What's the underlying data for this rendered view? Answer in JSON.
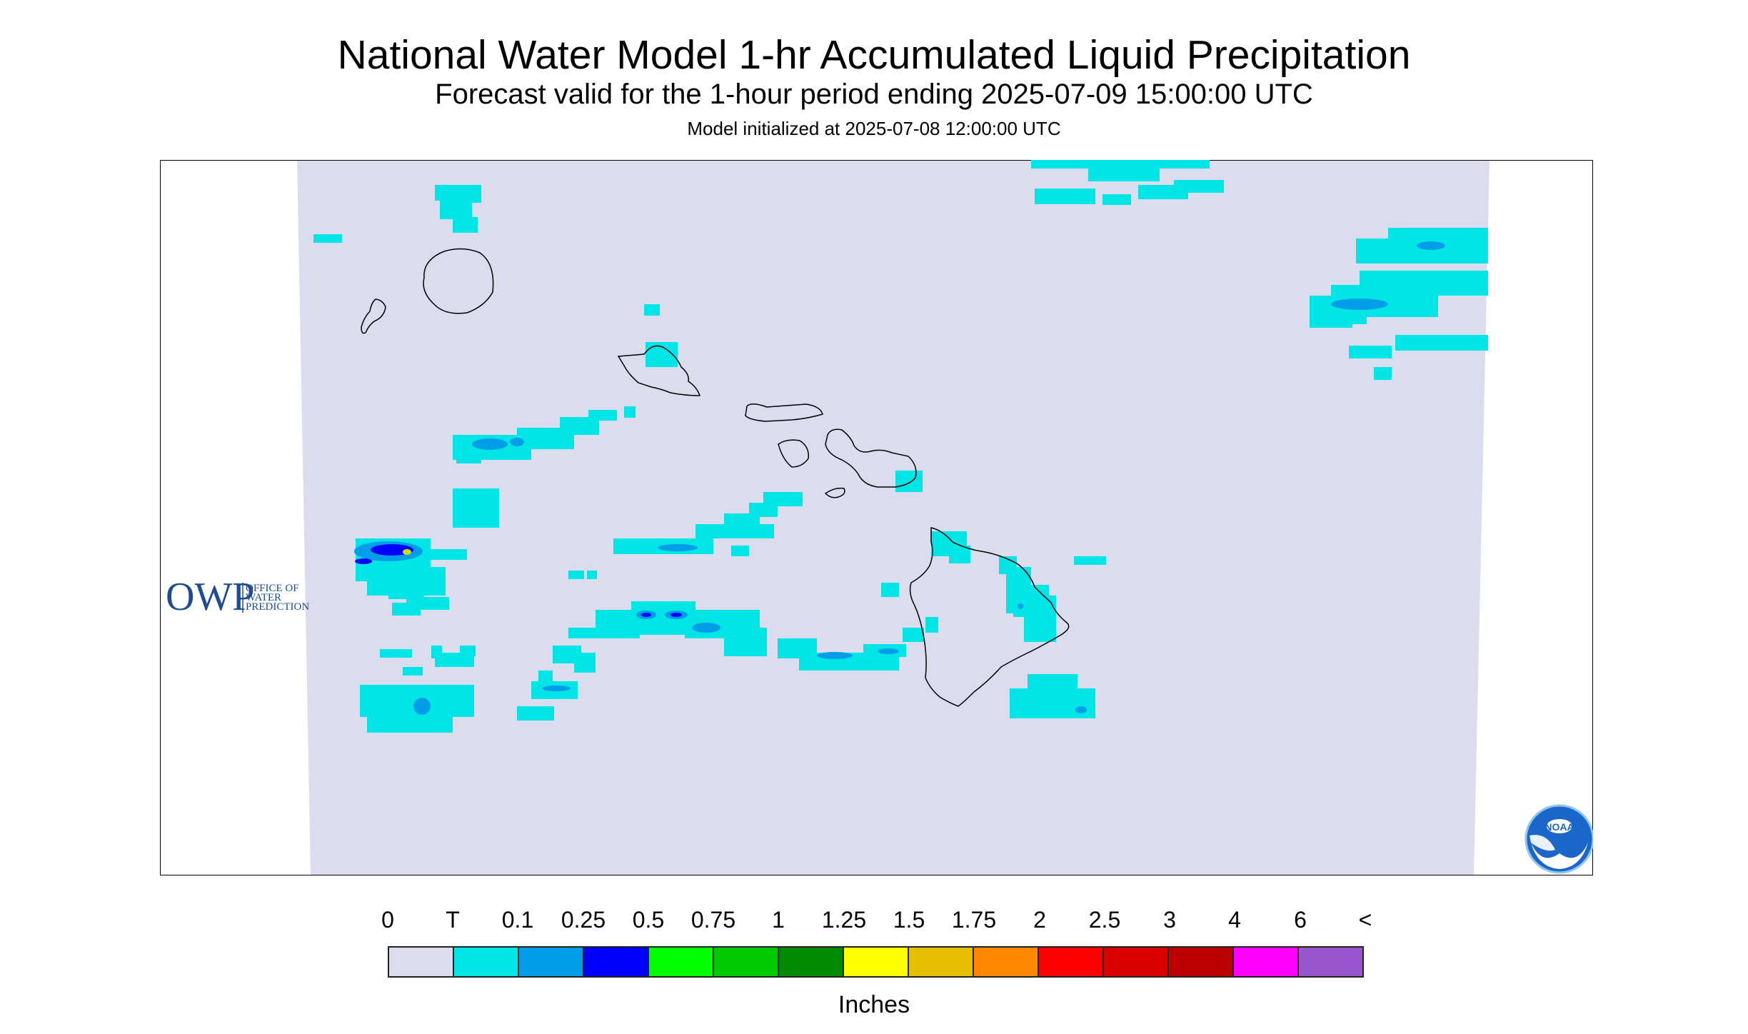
{
  "title": "National Water Model 1-hr Accumulated Liquid Precipitation",
  "subtitle": "Forecast valid for the 1-hour period ending 2025-07-09 15:00:00 UTC",
  "init_line": "Model initialized at 2025-07-08 12:00:00 UTC",
  "logos": {
    "owp_mark": "OWP",
    "owp_text": [
      "OFFICE OF",
      "WATER",
      "PREDICTION"
    ],
    "noaa_text": "NOAA"
  },
  "legend": {
    "ticks": [
      "0",
      "T",
      "0.1",
      "0.25",
      "0.5",
      "0.75",
      "1",
      "1.25",
      "1.5",
      "1.75",
      "2",
      "2.5",
      "3",
      "4",
      "6",
      "<"
    ],
    "colors": [
      "#dcdcef",
      "#00e5e5",
      "#009ee8",
      "#0000ff",
      "#00ff00",
      "#00cc00",
      "#008a00",
      "#ffff00",
      "#e6c000",
      "#ff8800",
      "#ff0000",
      "#d90000",
      "#bb0000",
      "#ff00ff",
      "#9955cc"
    ],
    "units": "Inches"
  },
  "map_colors": {
    "background": "#dcdcef",
    "trace": "#00e5e5",
    "light": "#009ee8",
    "heavy": "#0000ff",
    "peak": "#c8e000",
    "coast": "#000000"
  }
}
